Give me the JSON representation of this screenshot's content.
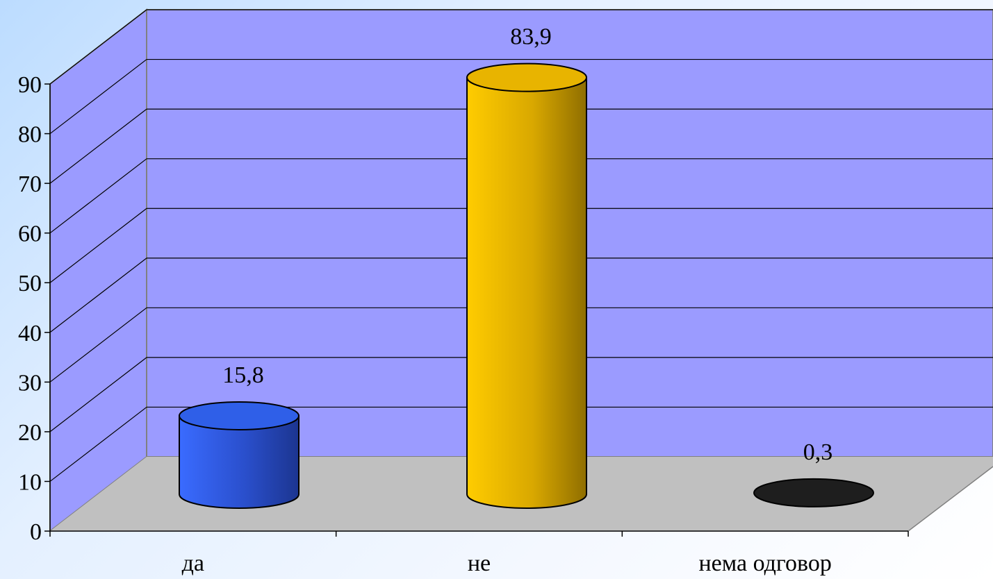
{
  "chart_data": {
    "type": "bar",
    "style": "3d-cylinder",
    "categories": [
      "да",
      "не",
      "нема одговор"
    ],
    "values": [
      15.8,
      83.9,
      0.3
    ],
    "data_labels": [
      "15,8",
      "83,9",
      "0,3"
    ],
    "ylim": [
      0,
      90
    ],
    "yticks": [
      "0",
      "10",
      "20",
      "30",
      "40",
      "50",
      "60",
      "70",
      "80",
      "90"
    ],
    "grid": true,
    "colors": {
      "bars": [
        "#2f5fe8",
        "#e8b400",
        "#1e1e1e"
      ],
      "back_wall": "#9b9bff",
      "side_wall": "#9b9bff",
      "floor": "#c0c0c0"
    }
  }
}
